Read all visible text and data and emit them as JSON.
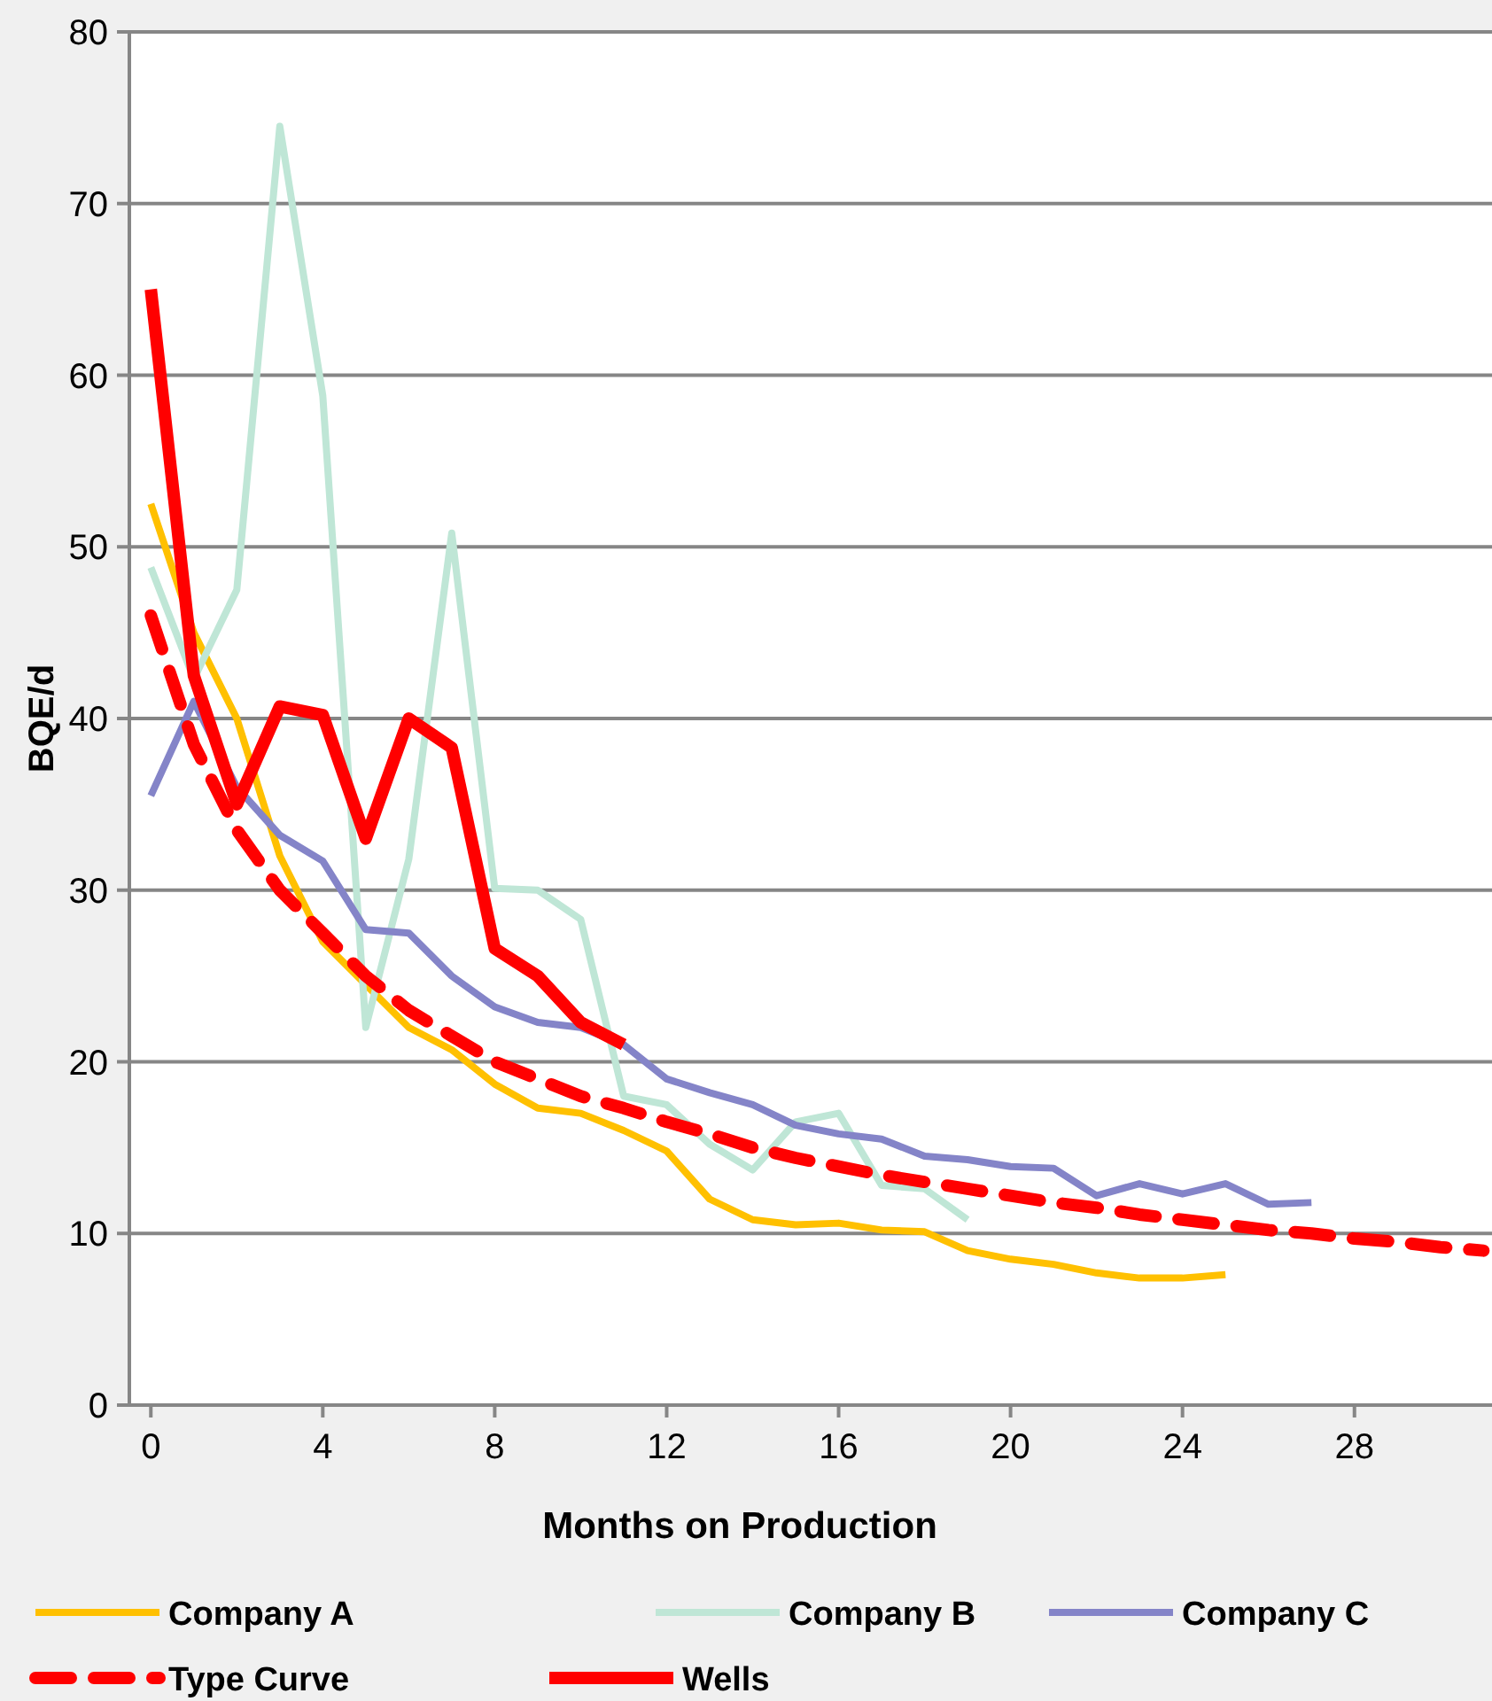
{
  "chart_data": {
    "type": "line",
    "xlabel": "Months on Production",
    "ylabel": "BQE/d",
    "xlim": [
      -0.5,
      31.2
    ],
    "ylim": [
      0,
      80
    ],
    "xticks": [
      0,
      4,
      8,
      12,
      16,
      20,
      24,
      28
    ],
    "yticks": [
      0,
      10,
      20,
      30,
      40,
      50,
      60,
      70,
      80
    ],
    "grid": "y",
    "legend": "bottom",
    "marker": "none",
    "series": [
      {
        "name": "Company A",
        "color": "#ffc000",
        "line_style": "solid",
        "x": [
          0,
          1,
          2,
          3,
          4,
          5,
          6,
          7,
          8,
          9,
          10,
          11,
          12,
          13,
          14,
          15,
          16,
          17,
          18,
          19,
          20,
          21,
          22,
          23,
          24,
          25
        ],
        "values": [
          52.5,
          45,
          40,
          32,
          27,
          24.5,
          22,
          20.7,
          18.7,
          17.3,
          17,
          16,
          14.8,
          12,
          10.8,
          10.5,
          10.6,
          10.2,
          10.1,
          9,
          8.5,
          8.2,
          7.7,
          7.4,
          7.4,
          7.6
        ]
      },
      {
        "name": "Company B",
        "color": "#bfe6d6",
        "line_style": "solid",
        "x": [
          0,
          1,
          2,
          3,
          4,
          5,
          6,
          7,
          8,
          9,
          10,
          11,
          12,
          13,
          14,
          15,
          16,
          17,
          18,
          19
        ],
        "values": [
          48.8,
          42.3,
          47.5,
          74.5,
          58.8,
          22,
          31.8,
          50.8,
          30.1,
          30,
          28.3,
          18,
          17.5,
          15.2,
          13.7,
          16.5,
          17,
          12.8,
          12.6,
          10.8
        ]
      },
      {
        "name": "Company C",
        "color": "#8484c8",
        "line_style": "solid",
        "x": [
          0,
          1,
          2,
          3,
          4,
          5,
          6,
          7,
          8,
          9,
          10,
          11,
          12,
          13,
          14,
          15,
          16,
          17,
          18,
          19,
          20,
          21,
          22,
          23,
          24,
          25,
          26,
          27
        ],
        "values": [
          35.5,
          41,
          36,
          33.2,
          31.7,
          27.7,
          27.5,
          25,
          23.2,
          22.3,
          22,
          21,
          19,
          18.2,
          17.5,
          16.3,
          15.8,
          15.5,
          14.5,
          14.3,
          13.9,
          13.8,
          12.2,
          12.9,
          12.3,
          12.9,
          11.7,
          11.8
        ]
      },
      {
        "name": "Type Curve",
        "color": "#ff0000",
        "line_style": "dashed",
        "x": [
          0,
          1,
          2,
          3,
          4,
          5,
          6,
          7,
          8,
          9,
          10,
          11,
          12,
          13,
          14,
          15,
          16,
          17,
          18,
          19,
          20,
          21,
          22,
          23,
          24,
          25,
          26,
          27,
          28,
          29,
          30,
          31
        ],
        "values": [
          46,
          38.5,
          33.5,
          30,
          27.5,
          25,
          23,
          21.5,
          20,
          19,
          18,
          17.3,
          16.5,
          15.8,
          15,
          14.4,
          13.9,
          13.4,
          13,
          12.6,
          12.2,
          11.8,
          11.5,
          11.1,
          10.8,
          10.5,
          10.2,
          10,
          9.7,
          9.5,
          9.2,
          9
        ]
      },
      {
        "name": "Wells",
        "color": "#ff0000",
        "line_style": "solid",
        "x": [
          0,
          1,
          2,
          3,
          4,
          5,
          6,
          7,
          8,
          9,
          10,
          11
        ],
        "values": [
          65,
          42.5,
          35,
          40.7,
          40.2,
          33,
          40,
          38.3,
          26.6,
          25,
          22.3,
          21
        ]
      }
    ]
  }
}
